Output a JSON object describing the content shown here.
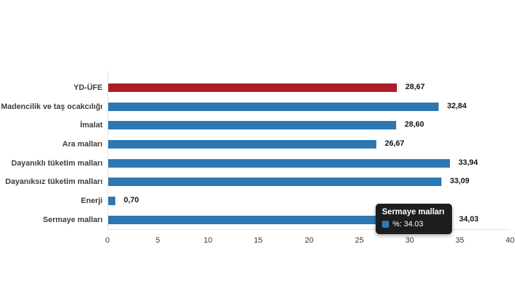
{
  "chart_data": {
    "type": "bar",
    "orientation": "horizontal",
    "title": "",
    "xlabel": "",
    "ylabel": "",
    "categories": [
      "YD-ÜFE",
      "Madencilik ve taş ocakcılığı",
      "İmalat",
      "Ara malları",
      "Dayanıklı tüketim malları",
      "Dayanıksız tüketim malları",
      "Enerji",
      "Sermaye malları"
    ],
    "values": [
      28.67,
      32.84,
      28.6,
      26.67,
      33.94,
      33.09,
      0.7,
      34.03
    ],
    "value_labels": [
      "28,67",
      "32,84",
      "28,60",
      "26,67",
      "33,94",
      "33,09",
      "0,70",
      "34,03"
    ],
    "point_colors": [
      "#ab1f29",
      "#2d77b2",
      "#2d77b2",
      "#2d77b2",
      "#2d77b2",
      "#2d77b2",
      "#2d77b2",
      "#2d77b2"
    ],
    "xlim": [
      0,
      40
    ],
    "x_ticks": [
      "0",
      "5",
      "10",
      "15",
      "20",
      "25",
      "30",
      "35",
      "40"
    ],
    "grid": false,
    "legend": false
  },
  "tooltip": {
    "title": "Sermaye malları",
    "value_text": "%: 34.03",
    "swatch_color": "#2d77b2"
  },
  "colors": {
    "bar_red": "#ab1f29",
    "bar_blue": "#2d77b2",
    "axis_line": "#e3e3e3",
    "tooltip_bg": "#1d1d1d",
    "tick_text": "#333333",
    "category_text": "#3d3d3d"
  }
}
